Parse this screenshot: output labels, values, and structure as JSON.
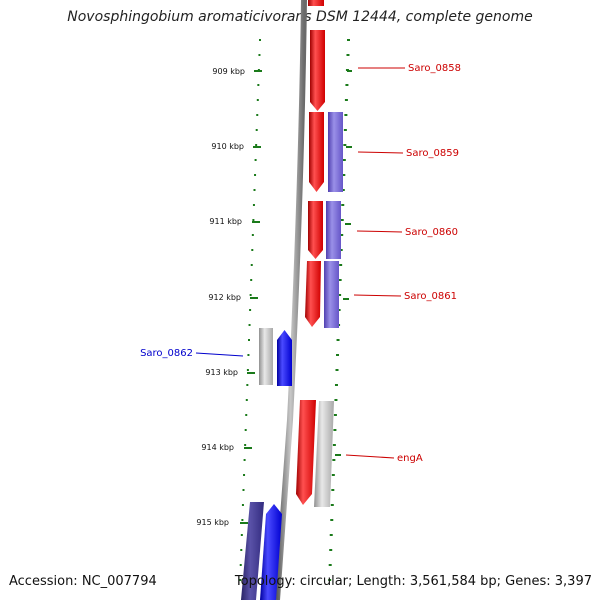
{
  "header": {
    "title": "Novosphingobium aromaticivorans DSM 12444, complete genome"
  },
  "footer": {
    "accession": "Accession: NC_007794",
    "topology": "Topology: circular; Length: 3,561,584 bp; Genes: 3,397"
  },
  "colors": {
    "backbone": "#8a8a8a",
    "ruler": "#1a7a1a",
    "forward_gene": "#ee0000",
    "reverse_gene": "#0000ee",
    "other_track": "#b0b0b0",
    "purple_track": "#6a5acd",
    "dark_purple_track": "#3b3580"
  },
  "ruler": {
    "ticks": [
      "909 kbp",
      "910 kbp",
      "911 kbp",
      "912 kbp",
      "913 kbp",
      "914 kbp",
      "915 kbp"
    ]
  },
  "genes": [
    {
      "name": "Saro_0858",
      "strand": "forward"
    },
    {
      "name": "Saro_0859",
      "strand": "forward"
    },
    {
      "name": "Saro_0860",
      "strand": "forward"
    },
    {
      "name": "Saro_0861",
      "strand": "forward"
    },
    {
      "name": "Saro_0862",
      "strand": "reverse"
    },
    {
      "name": "engA",
      "strand": "forward"
    }
  ]
}
